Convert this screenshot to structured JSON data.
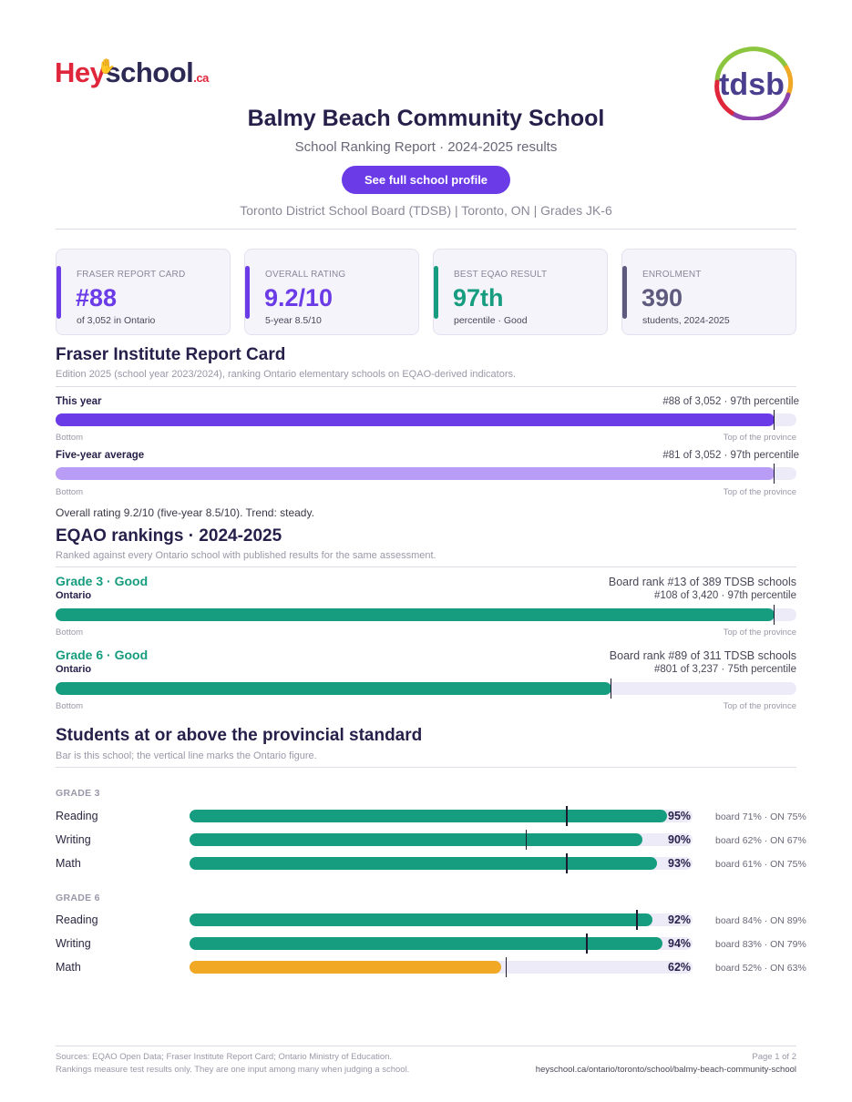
{
  "header": {
    "logo_hey": "Hey",
    "logo_school": "school",
    "logo_ca": ".ca",
    "tdsb_logo": "tdsb",
    "title": "Balmy Beach Community School",
    "subtitle": "School Ranking Report  ·  2024-2025 results",
    "profile_button": "See full school profile",
    "meta": "Toronto District School Board (TDSB)  |  Toronto, ON  |  Grades JK-6"
  },
  "stats": [
    {
      "label": "FRASER REPORT CARD",
      "value": "#88",
      "sub": "of 3,052 in Ontario",
      "color": "#6c3be8"
    },
    {
      "label": "OVERALL RATING",
      "value": "9.2/10",
      "sub": "5-year 8.5/10",
      "color": "#6c3be8"
    },
    {
      "label": "BEST EQAO RESULT",
      "value": "97th",
      "sub": "percentile  ·  Good",
      "color": "#169c7e"
    },
    {
      "label": "ENROLMENT",
      "value": "390",
      "sub": "students, 2024-2025",
      "color": "#5e5a7e"
    }
  ],
  "fraser": {
    "title": "Fraser Institute Report Card",
    "note": "Edition 2025 (school year 2023/2024), ranking Ontario elementary schools on EQAO-derived indicators.",
    "axis_left": "Bottom",
    "axis_right": "Top of the province",
    "bars": [
      {
        "label": "This year",
        "right": "#88 of 3,052  ·  97th percentile",
        "percentile": 97,
        "color": "#6c3be8"
      },
      {
        "label": "Five-year average",
        "right": "#81 of 3,052  ·  97th percentile",
        "percentile": 97,
        "color": "#b99cf5"
      }
    ],
    "summary": "Overall rating 9.2/10 (five-year 8.5/10). Trend: steady."
  },
  "eqao": {
    "title": "EQAO rankings  ·  2024-2025",
    "note": "Ranked against every Ontario school with published results for the same assessment.",
    "axis_left": "Bottom",
    "axis_right": "Top of the province",
    "grades": [
      {
        "head": "Grade 3  ·  Good",
        "sub": "Ontario",
        "board_rank": "Board rank #13 of 389 TDSB schools",
        "right": "#108 of 3,420  ·  97th percentile",
        "percentile": 97,
        "color": "#169c7e"
      },
      {
        "head": "Grade 6  ·  Good",
        "sub": "Ontario",
        "board_rank": "Board rank #89 of 311 TDSB schools",
        "right": "#801 of 3,237  ·  75th percentile",
        "percentile": 75,
        "color": "#169c7e"
      }
    ]
  },
  "standard": {
    "title": "Students at or above the provincial standard",
    "note": "Bar is this school; the vertical line marks the Ontario figure.",
    "groups": [
      {
        "label": "GRADE 3",
        "rows": [
          {
            "subject": "Reading",
            "school": 95,
            "ontario": 75,
            "pct": "95%",
            "cmp": "board 71%  ·  ON 75%",
            "color": "#169c7e"
          },
          {
            "subject": "Writing",
            "school": 90,
            "ontario": 67,
            "pct": "90%",
            "cmp": "board 62%  ·  ON 67%",
            "color": "#169c7e"
          },
          {
            "subject": "Math",
            "school": 93,
            "ontario": 75,
            "pct": "93%",
            "cmp": "board 61%  ·  ON 75%",
            "color": "#169c7e"
          }
        ]
      },
      {
        "label": "GRADE 6",
        "rows": [
          {
            "subject": "Reading",
            "school": 92,
            "ontario": 89,
            "pct": "92%",
            "cmp": "board 84%  ·  ON 89%",
            "color": "#169c7e"
          },
          {
            "subject": "Writing",
            "school": 94,
            "ontario": 79,
            "pct": "94%",
            "cmp": "board 83%  ·  ON 79%",
            "color": "#169c7e"
          },
          {
            "subject": "Math",
            "school": 62,
            "ontario": 63,
            "pct": "62%",
            "cmp": "board 52%  ·  ON 63%",
            "color": "#f0a825"
          }
        ]
      }
    ]
  },
  "footer": {
    "left_line1": "Sources: EQAO Open Data; Fraser Institute Report Card; Ontario Ministry of Education.",
    "left_line2": "Rankings measure test results only. They are one input among many when judging a school.",
    "page": "Page 1 of 2",
    "url": "heyschool.ca/ontario/toronto/school/balmy-beach-community-school"
  }
}
